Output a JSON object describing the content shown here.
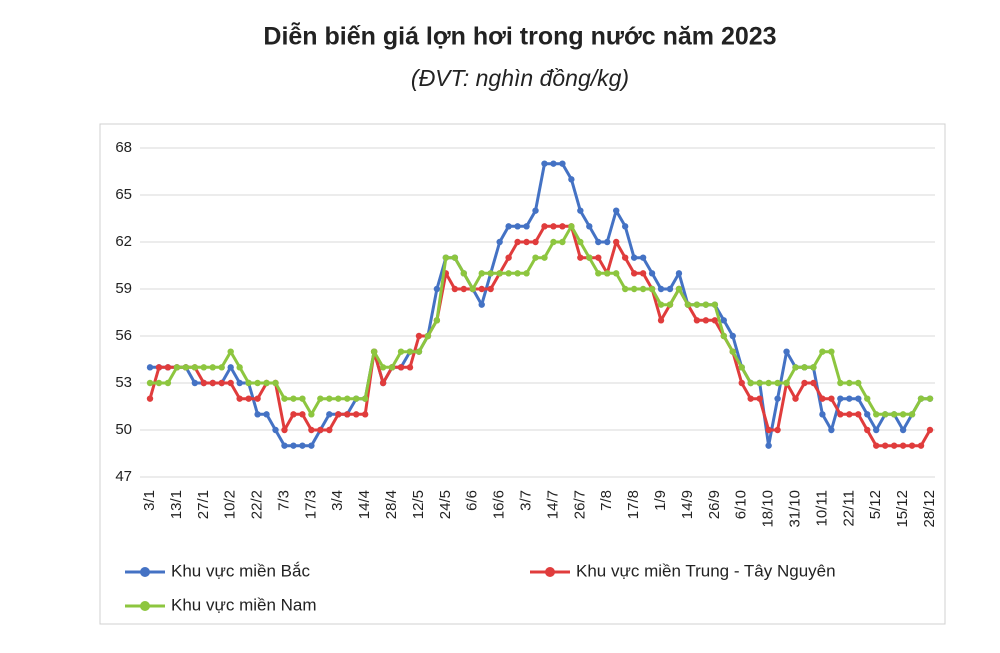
{
  "chart_data": {
    "type": "line",
    "title": "Diễn biến giá lợn hơi trong nước năm 2023",
    "subtitle": "(ĐVT: nghìn đồng/kg)",
    "categories": [
      "3/1",
      null,
      null,
      "13/1",
      null,
      null,
      "27/1",
      null,
      null,
      "10/2",
      null,
      null,
      "22/2",
      null,
      null,
      "7/3",
      null,
      null,
      "17/3",
      null,
      null,
      "3/4",
      null,
      null,
      "14/4",
      null,
      null,
      "28/4",
      null,
      null,
      "12/5",
      null,
      null,
      "24/5",
      null,
      null,
      "6/6",
      null,
      null,
      "16/6",
      null,
      null,
      "3/7",
      null,
      null,
      "14/7",
      null,
      null,
      "26/7",
      null,
      null,
      "7/8",
      null,
      null,
      "17/8",
      null,
      null,
      "1/9",
      null,
      null,
      "14/9",
      null,
      null,
      "26/9",
      null,
      null,
      "6/10",
      null,
      null,
      "18/10",
      null,
      null,
      "31/10",
      null,
      null,
      "10/11",
      null,
      null,
      "22/11",
      null,
      null,
      "5/12",
      null,
      null,
      "15/12",
      null,
      null,
      "28/12"
    ],
    "series": [
      {
        "name": "Khu vực miền Bắc",
        "color": "#4472c4",
        "values": [
          54,
          54,
          54,
          54,
          54,
          53,
          53,
          53,
          53,
          54,
          53,
          53,
          51,
          51,
          50,
          49,
          49,
          49,
          49,
          50,
          51,
          51,
          51,
          52,
          52,
          55,
          53,
          54,
          54,
          55,
          55,
          56,
          59,
          61,
          61,
          60,
          59,
          58,
          60,
          62,
          63,
          63,
          63,
          64,
          67,
          67,
          67,
          66,
          64,
          63,
          62,
          62,
          64,
          63,
          61,
          61,
          60,
          59,
          59,
          60,
          58,
          58,
          58,
          58,
          57,
          56,
          54,
          53,
          53,
          49,
          52,
          55,
          54,
          54,
          54,
          51,
          50,
          52,
          52,
          52,
          51,
          50,
          51,
          51,
          50,
          51,
          52,
          52
        ]
      },
      {
        "name": "Khu vực miền Trung - Tây Nguyên",
        "color": "#e03c3c",
        "values": [
          52,
          54,
          54,
          54,
          54,
          54,
          53,
          53,
          53,
          53,
          52,
          52,
          52,
          53,
          53,
          50,
          51,
          51,
          50,
          50,
          50,
          51,
          51,
          51,
          51,
          55,
          53,
          54,
          54,
          54,
          56,
          56,
          57,
          60,
          59,
          59,
          59,
          59,
          59,
          60,
          61,
          62,
          62,
          62,
          63,
          63,
          63,
          63,
          61,
          61,
          61,
          60,
          62,
          61,
          60,
          60,
          59,
          57,
          58,
          59,
          58,
          57,
          57,
          57,
          56,
          55,
          53,
          52,
          52,
          50,
          50,
          53,
          52,
          53,
          53,
          52,
          52,
          51,
          51,
          51,
          50,
          49,
          49,
          49,
          49,
          49,
          49,
          50
        ]
      },
      {
        "name": "Khu vực miền Nam",
        "color": "#8dc63f",
        "values": [
          53,
          53,
          53,
          54,
          54,
          54,
          54,
          54,
          54,
          55,
          54,
          53,
          53,
          53,
          53,
          52,
          52,
          52,
          51,
          52,
          52,
          52,
          52,
          52,
          52,
          55,
          54,
          54,
          55,
          55,
          55,
          56,
          57,
          61,
          61,
          60,
          59,
          60,
          60,
          60,
          60,
          60,
          60,
          61,
          61,
          62,
          62,
          63,
          62,
          61,
          60,
          60,
          60,
          59,
          59,
          59,
          59,
          58,
          58,
          59,
          58,
          58,
          58,
          58,
          56,
          55,
          54,
          53,
          53,
          53,
          53,
          53,
          54,
          54,
          54,
          55,
          55,
          53,
          53,
          53,
          52,
          51,
          51,
          51,
          51,
          51,
          52,
          52
        ]
      }
    ],
    "ylim": [
      47,
      68
    ],
    "yticks": [
      47,
      50,
      53,
      56,
      59,
      62,
      65,
      68
    ],
    "grid": true
  }
}
